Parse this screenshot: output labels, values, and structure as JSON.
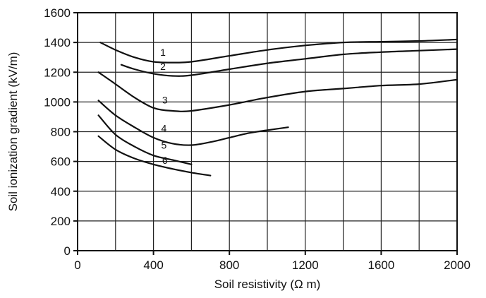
{
  "chart_data": {
    "type": "line",
    "title": "",
    "xlabel": "Soil resistivity (Ω m)",
    "ylabel": "Soil ionization gradient (kV/m)",
    "xlim": [
      0,
      2000
    ],
    "ylim": [
      0,
      1600
    ],
    "x_ticks": [
      0,
      400,
      800,
      1200,
      1600,
      2000
    ],
    "y_ticks": [
      0,
      200,
      400,
      600,
      800,
      1000,
      1200,
      1400,
      1600
    ],
    "x_tick_labels": [
      "0",
      "400",
      "800",
      "1200",
      "1600",
      "2000"
    ],
    "y_tick_labels": [
      "0",
      "200",
      "400",
      "600",
      "800",
      "1000",
      "1200",
      "1400",
      "1600"
    ],
    "grid": true,
    "series": [
      {
        "name": "1",
        "label_at": [
          450,
          1310
        ],
        "x": [
          120,
          200,
          300,
          400,
          500,
          600,
          800,
          1000,
          1200,
          1400,
          1600,
          1800,
          2000
        ],
        "y": [
          1400,
          1350,
          1300,
          1270,
          1265,
          1270,
          1310,
          1350,
          1380,
          1400,
          1405,
          1410,
          1420
        ]
      },
      {
        "name": "2",
        "label_at": [
          450,
          1215
        ],
        "x": [
          230,
          300,
          400,
          500,
          600,
          800,
          1000,
          1200,
          1400,
          1600,
          1800,
          2000
        ],
        "y": [
          1250,
          1220,
          1190,
          1175,
          1180,
          1220,
          1260,
          1290,
          1320,
          1335,
          1345,
          1355
        ]
      },
      {
        "name": "3",
        "label_at": [
          460,
          990
        ],
        "x": [
          110,
          200,
          300,
          400,
          500,
          600,
          800,
          1000,
          1200,
          1400,
          1600,
          1800,
          2000
        ],
        "y": [
          1200,
          1120,
          1030,
          960,
          940,
          940,
          980,
          1030,
          1070,
          1090,
          1110,
          1120,
          1150
        ]
      },
      {
        "name": "4",
        "label_at": [
          455,
          800
        ],
        "x": [
          110,
          200,
          300,
          400,
          500,
          600,
          700,
          800,
          900,
          1000,
          1110
        ],
        "y": [
          1010,
          910,
          830,
          760,
          720,
          710,
          730,
          760,
          790,
          810,
          830
        ]
      },
      {
        "name": "5",
        "label_at": [
          455,
          685
        ],
        "x": [
          110,
          200,
          300,
          400,
          500,
          600
        ],
        "y": [
          910,
          780,
          700,
          640,
          610,
          580
        ]
      },
      {
        "name": "6",
        "label_at": [
          460,
          585
        ],
        "x": [
          110,
          200,
          300,
          400,
          500,
          600,
          700
        ],
        "y": [
          770,
          680,
          620,
          580,
          550,
          525,
          505
        ]
      }
    ]
  }
}
